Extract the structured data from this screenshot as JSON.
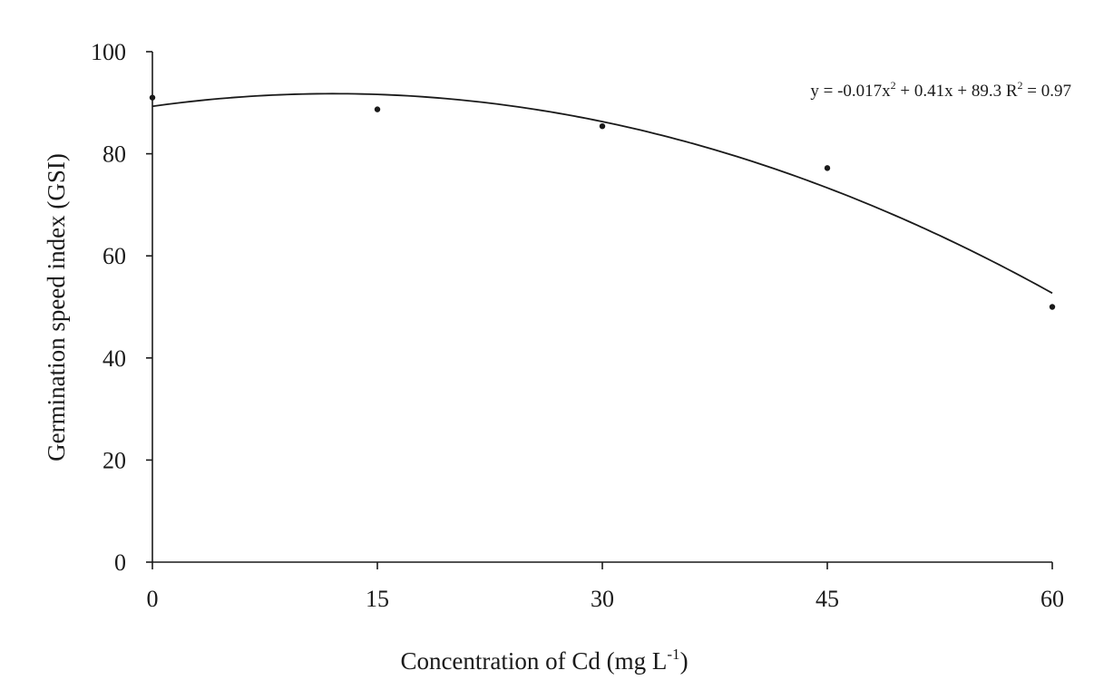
{
  "chart_data": {
    "type": "scatter",
    "xlabel": "Concentration of Cd (mg L",
    "xlabel_superscript": "-1",
    "xlabel_suffix": ")",
    "ylabel": "Germination speed index (GSI)",
    "equation": {
      "part1": "y = -0.017x",
      "sup1": "2",
      "part2": " + 0.41x + 89.3   R",
      "sup2": "2",
      "part3": " = 0.97"
    },
    "x_ticks": [
      "0",
      "15",
      "30",
      "45",
      "60"
    ],
    "y_ticks": [
      "0",
      "20",
      "40",
      "60",
      "80",
      "100"
    ],
    "xlim": [
      0,
      60
    ],
    "ylim": [
      0,
      100
    ],
    "grid": false,
    "points": [
      {
        "x": 0,
        "y": 91
      },
      {
        "x": 15,
        "y": 88.7
      },
      {
        "x": 30,
        "y": 85.4
      },
      {
        "x": 45,
        "y": 77.2
      },
      {
        "x": 60,
        "y": 50
      }
    ],
    "fit": {
      "type": "quadratic",
      "a": -0.017,
      "b": 0.41,
      "c": 89.3
    }
  }
}
